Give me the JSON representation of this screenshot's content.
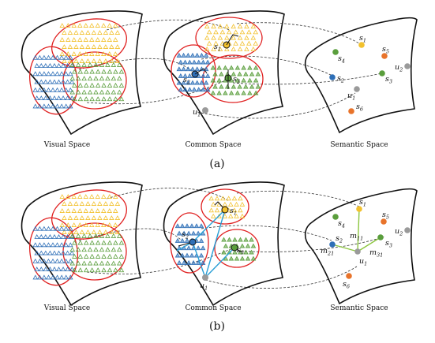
{
  "colors": {
    "yellow": "#f2c12e",
    "blue": "#2e6fb7",
    "green": "#5a9e3c",
    "red": "#e02020",
    "orange": "#e8732a",
    "gray": "#9a9a9a",
    "cyan": "#2a9fd6",
    "lightgreen": "#8cc63f"
  },
  "spaces": {
    "visual": "Visual Space",
    "common": "Common Space",
    "semantic": "Semantic Space"
  },
  "panels": [
    "(a)",
    "(b)"
  ],
  "labels": {
    "s1": {
      "base": "s",
      "sub": "1"
    },
    "s2": {
      "base": "s",
      "sub": "2"
    },
    "s3": {
      "base": "s",
      "sub": "3"
    },
    "s4": {
      "base": "s",
      "sub": "4"
    },
    "s5": {
      "base": "s",
      "sub": "5"
    },
    "s6": {
      "base": "s",
      "sub": "6"
    },
    "u1": {
      "base": "u",
      "sub": "1"
    },
    "u2": {
      "base": "u",
      "sub": "2"
    },
    "m11": {
      "base": "m",
      "sub": "11"
    },
    "m21": {
      "base": "m",
      "sub": "21"
    },
    "m31": {
      "base": "m",
      "sub": "31"
    }
  }
}
